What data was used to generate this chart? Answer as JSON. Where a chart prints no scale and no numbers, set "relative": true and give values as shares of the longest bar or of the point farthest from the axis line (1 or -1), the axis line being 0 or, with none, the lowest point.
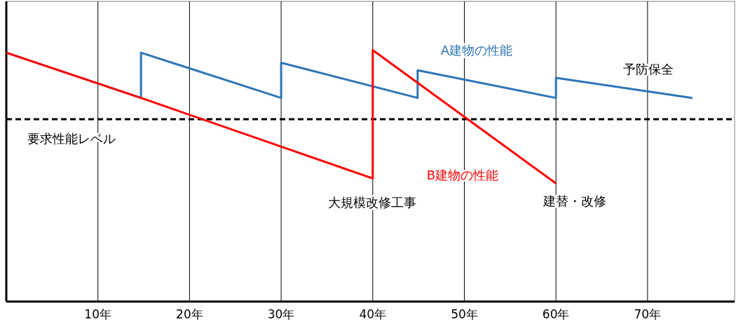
{
  "chart_data": {
    "type": "line",
    "relative": true,
    "xlim": [
      0,
      79.5
    ],
    "grid": "x",
    "xticks": [
      {
        "value": 10,
        "label": "10年"
      },
      {
        "value": 20,
        "label": "20年"
      },
      {
        "value": 30,
        "label": "30年"
      },
      {
        "value": 40,
        "label": "40年"
      },
      {
        "value": 50,
        "label": "50年"
      },
      {
        "value": 60,
        "label": "60年"
      },
      {
        "value": 70,
        "label": "70年"
      }
    ],
    "series": [
      {
        "name": "A建物の性能",
        "color": "#2e75b6",
        "x": [
          0,
          14.7,
          14.7,
          30,
          30,
          44.9,
          44.9,
          60,
          60,
          74.9
        ],
        "values": [
          0.99,
          0.81,
          0.99,
          0.81,
          0.95,
          0.81,
          0.92,
          0.81,
          0.89,
          0.81
        ]
      },
      {
        "name": "B建物の性能",
        "color": "#ff0000",
        "x": [
          0,
          14.7,
          40,
          40,
          60
        ],
        "values": [
          0.99,
          0.81,
          0.49,
          1.0,
          0.47
        ]
      }
    ],
    "ref_lines": [
      {
        "axis": "y",
        "value": 0.725,
        "label": "要求性能レベル",
        "color": "#000000",
        "line_style": "dashed"
      }
    ],
    "annotations": [
      "大規模改修工事",
      "建替・改修",
      "予防保全"
    ]
  }
}
